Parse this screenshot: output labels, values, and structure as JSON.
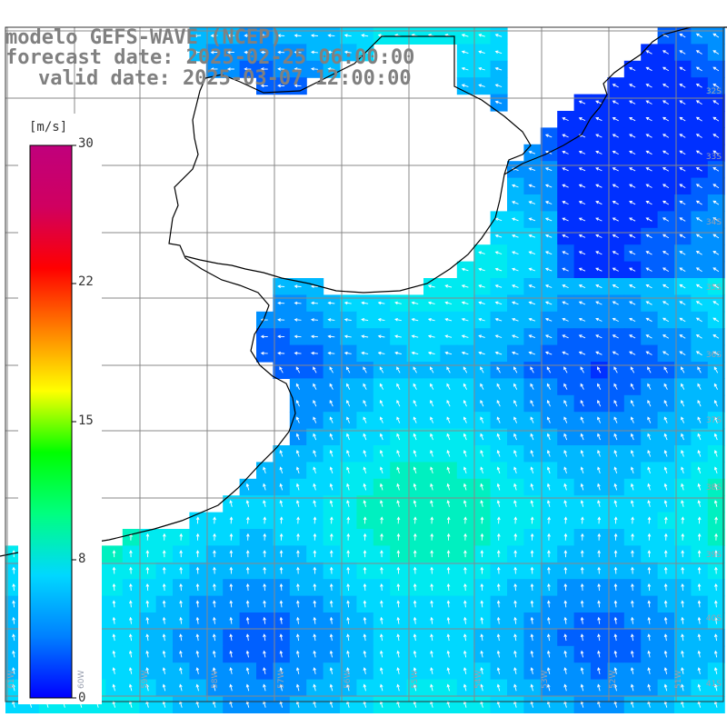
{
  "title": {
    "line1": "modelo GEFS-WAVE (NCEP)",
    "line2": "forecast date: 2025-02-25 06:00:00",
    "line3": "valid date: 2025-03-07 12:00:00"
  },
  "colorbar": {
    "unit": "[m/s]",
    "ticks": [
      "30",
      "22",
      "15",
      "8",
      "0"
    ],
    "colors": [
      "#0000ff",
      "#0080ff",
      "#00d8ff",
      "#00ff80",
      "#00ff00",
      "#ffff00",
      "#ff8000",
      "#ff0000",
      "#d00060",
      "#c0007c"
    ]
  },
  "lat_labels": [
    "32S",
    "33S",
    "34S",
    "35S",
    "36S",
    "37S",
    "38S",
    "39S",
    "40S",
    "41S"
  ],
  "lon_labels": [
    "61W",
    "60W",
    "59W",
    "58W",
    "57W",
    "56W",
    "55W",
    "54W",
    "53W",
    "52W",
    "51W"
  ],
  "legend_placement": "left",
  "grid": true
}
